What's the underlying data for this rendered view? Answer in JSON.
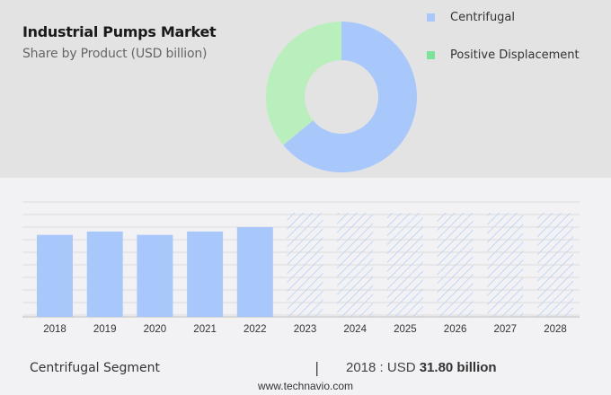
{
  "header": {
    "title": "Industrial Pumps Market",
    "subtitle": "Share by Product (USD billion)"
  },
  "legend": [
    {
      "label": "Centrifugal",
      "color": "#a8c8fc"
    },
    {
      "label": "Positive Displacement",
      "color": "#7de39a"
    }
  ],
  "footer": {
    "segment_label": "Centrifugal Segment",
    "separator": "|",
    "value_prefix": "2018 : USD ",
    "value_bold": "31.80 billion",
    "website": "www.technavio.com"
  },
  "chart_data": [
    {
      "type": "pie",
      "title": "Industrial Pumps Market - Share by Product (USD billion)",
      "style": "donut",
      "categories": [
        "Centrifugal",
        "Positive Displacement"
      ],
      "values": [
        64,
        36
      ],
      "unit": "percent share (estimated)",
      "colors": [
        "#a8c8fc",
        "#b9efbc"
      ],
      "legend_position": "right"
    },
    {
      "type": "bar",
      "title": "Centrifugal Segment",
      "categories": [
        "2018",
        "2019",
        "2020",
        "2021",
        "2022",
        "2023",
        "2024",
        "2025",
        "2026",
        "2027",
        "2028"
      ],
      "values": [
        31.8,
        33.1,
        31.8,
        33.1,
        34.8,
        null,
        null,
        null,
        null,
        null,
        null
      ],
      "forecast_hatched": [
        "2023",
        "2024",
        "2025",
        "2026",
        "2027",
        "2028"
      ],
      "xlabel": "",
      "ylabel": "USD billion",
      "grid": true,
      "y_axis_labels_visible": false,
      "bar_color": "#a8c8fc",
      "annotation": "2018 : USD 31.80 billion"
    }
  ]
}
